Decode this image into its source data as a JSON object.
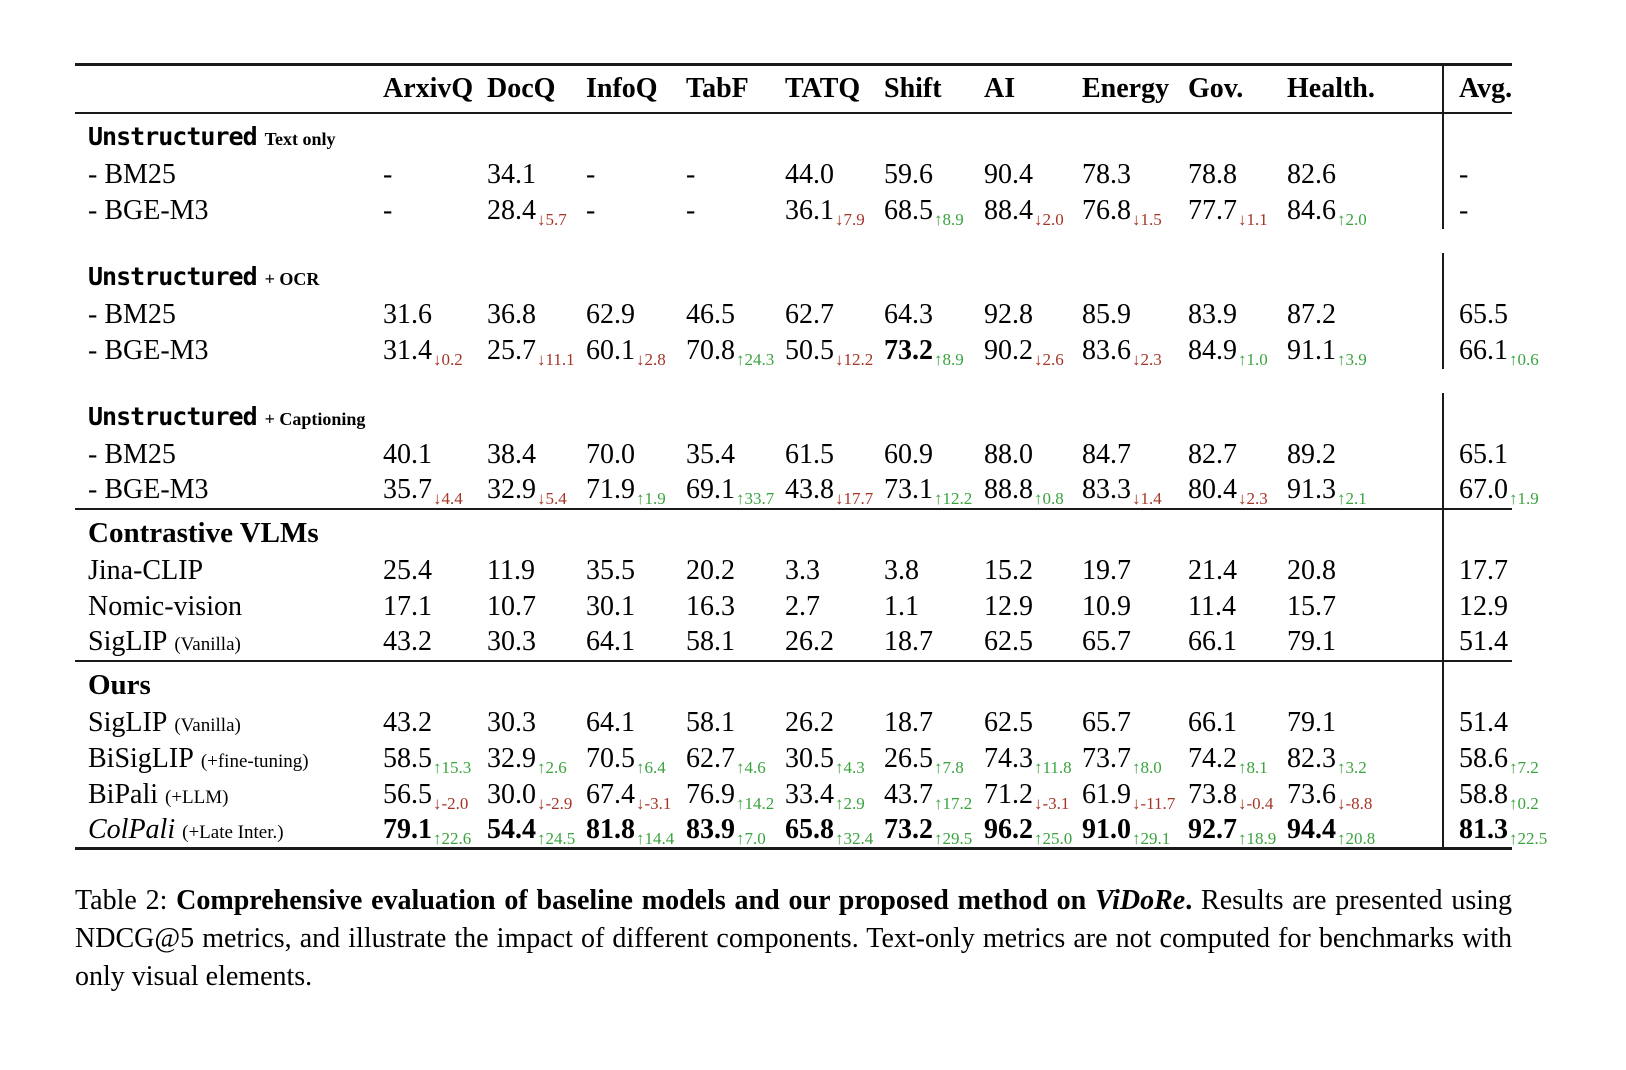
{
  "colors": {
    "increase": "#3aa33e",
    "decrease": "#a43527",
    "rule": "#1a1a1a",
    "text": "#000000"
  },
  "table": {
    "corner_label": "",
    "columns": [
      "ArxivQ",
      "DocQ",
      "InfoQ",
      "TabF",
      "TATQ",
      "Shift",
      "AI",
      "Energy",
      "Gov.",
      "Health."
    ],
    "avg_column": "Avg.",
    "sections": [
      {
        "title": "Unstructured",
        "title_font": "mono",
        "suffix": "Text only",
        "rows": [
          {
            "label": "- BM25",
            "cells": [
              "-",
              "34.1",
              "-",
              "-",
              "44.0",
              "59.6",
              "90.4",
              "78.3",
              "78.8",
              "82.6",
              "-"
            ]
          },
          {
            "label": "- BGE-M3",
            "cells": [
              "-",
              {
                "v": "28.4",
                "dir": "down",
                "d": "5.7"
              },
              "-",
              "-",
              {
                "v": "36.1",
                "dir": "down",
                "d": "7.9"
              },
              {
                "v": "68.5",
                "dir": "up",
                "d": "8.9"
              },
              {
                "v": "88.4",
                "dir": "down",
                "d": "2.0"
              },
              {
                "v": "76.8",
                "dir": "down",
                "d": "1.5"
              },
              {
                "v": "77.7",
                "dir": "down",
                "d": "1.1"
              },
              {
                "v": "84.6",
                "dir": "up",
                "d": "2.0"
              },
              "-"
            ]
          }
        ]
      },
      {
        "title": "Unstructured",
        "title_font": "mono",
        "suffix": "+ OCR",
        "gap_before": true,
        "rows": [
          {
            "label": "- BM25",
            "cells": [
              "31.6",
              "36.8",
              "62.9",
              "46.5",
              "62.7",
              "64.3",
              "92.8",
              "85.9",
              "83.9",
              "87.2",
              "65.5"
            ]
          },
          {
            "label": "- BGE-M3",
            "cells": [
              {
                "v": "31.4",
                "dir": "down",
                "d": "0.2"
              },
              {
                "v": "25.7",
                "dir": "down",
                "d": "11.1"
              },
              {
                "v": "60.1",
                "dir": "down",
                "d": "2.8"
              },
              {
                "v": "70.8",
                "dir": "up",
                "d": "24.3"
              },
              {
                "v": "50.5",
                "dir": "down",
                "d": "12.2"
              },
              {
                "v": "73.2",
                "dir": "up",
                "d": "8.9",
                "b": true
              },
              {
                "v": "90.2",
                "dir": "down",
                "d": "2.6"
              },
              {
                "v": "83.6",
                "dir": "down",
                "d": "2.3"
              },
              {
                "v": "84.9",
                "dir": "up",
                "d": "1.0"
              },
              {
                "v": "91.1",
                "dir": "up",
                "d": "3.9"
              },
              {
                "v": "66.1",
                "dir": "up",
                "d": "0.6"
              }
            ]
          }
        ]
      },
      {
        "title": "Unstructured",
        "title_font": "mono",
        "suffix": "+ Captioning",
        "gap_before": true,
        "rows": [
          {
            "label": "- BM25",
            "cells": [
              "40.1",
              "38.4",
              "70.0",
              "35.4",
              "61.5",
              "60.9",
              "88.0",
              "84.7",
              "82.7",
              "89.2",
              "65.1"
            ]
          },
          {
            "label": "- BGE-M3",
            "cells": [
              {
                "v": "35.7",
                "dir": "down",
                "d": "4.4"
              },
              {
                "v": "32.9",
                "dir": "down",
                "d": "5.4"
              },
              {
                "v": "71.9",
                "dir": "up",
                "d": "1.9"
              },
              {
                "v": "69.1",
                "dir": "up",
                "d": "33.7"
              },
              {
                "v": "43.8",
                "dir": "down",
                "d": "17.7"
              },
              {
                "v": "73.1",
                "dir": "up",
                "d": "12.2"
              },
              {
                "v": "88.8",
                "dir": "up",
                "d": "0.8"
              },
              {
                "v": "83.3",
                "dir": "down",
                "d": "1.4"
              },
              {
                "v": "80.4",
                "dir": "down",
                "d": "2.3"
              },
              {
                "v": "91.3",
                "dir": "up",
                "d": "2.1"
              },
              {
                "v": "67.0",
                "dir": "up",
                "d": "1.9"
              }
            ]
          }
        ]
      },
      {
        "title": "Contrastive VLMs",
        "title_font": "serif",
        "rule_before": true,
        "rows": [
          {
            "label": "Jina-CLIP",
            "cells": [
              "25.4",
              "11.9",
              "35.5",
              "20.2",
              "3.3",
              "3.8",
              "15.2",
              "19.7",
              "21.4",
              "20.8",
              "17.7"
            ]
          },
          {
            "label": "Nomic-vision",
            "cells": [
              "17.1",
              "10.7",
              "30.1",
              "16.3",
              "2.7",
              "1.1",
              "12.9",
              "10.9",
              "11.4",
              "15.7",
              "12.9"
            ]
          },
          {
            "label": "SigLIP",
            "label_suffix": "(Vanilla)",
            "cells": [
              "43.2",
              "30.3",
              "64.1",
              "58.1",
              "26.2",
              "18.7",
              "62.5",
              "65.7",
              "66.1",
              "79.1",
              "51.4"
            ]
          }
        ]
      },
      {
        "title": "Ours",
        "title_font": "serif",
        "rule_before": true,
        "rows": [
          {
            "label": "SigLIP",
            "label_suffix": "(Vanilla)",
            "cells": [
              "43.2",
              "30.3",
              "64.1",
              "58.1",
              "26.2",
              "18.7",
              "62.5",
              "65.7",
              "66.1",
              "79.1",
              "51.4"
            ]
          },
          {
            "label": "BiSigLIP",
            "label_suffix": "(+fine-tuning)",
            "cells": [
              {
                "v": "58.5",
                "dir": "up",
                "d": "15.3"
              },
              {
                "v": "32.9",
                "dir": "up",
                "d": "2.6"
              },
              {
                "v": "70.5",
                "dir": "up",
                "d": "6.4"
              },
              {
                "v": "62.7",
                "dir": "up",
                "d": "4.6"
              },
              {
                "v": "30.5",
                "dir": "up",
                "d": "4.3"
              },
              {
                "v": "26.5",
                "dir": "up",
                "d": "7.8"
              },
              {
                "v": "74.3",
                "dir": "up",
                "d": "11.8"
              },
              {
                "v": "73.7",
                "dir": "up",
                "d": "8.0"
              },
              {
                "v": "74.2",
                "dir": "up",
                "d": "8.1"
              },
              {
                "v": "82.3",
                "dir": "up",
                "d": "3.2"
              },
              {
                "v": "58.6",
                "dir": "up",
                "d": "7.2"
              }
            ]
          },
          {
            "label": "BiPali",
            "label_suffix": "(+LLM)",
            "cells": [
              {
                "v": "56.5",
                "dir": "down",
                "d": "-2.0"
              },
              {
                "v": "30.0",
                "dir": "down",
                "d": "-2.9"
              },
              {
                "v": "67.4",
                "dir": "down",
                "d": "-3.1"
              },
              {
                "v": "76.9",
                "dir": "up",
                "d": "14.2"
              },
              {
                "v": "33.4",
                "dir": "up",
                "d": "2.9"
              },
              {
                "v": "43.7",
                "dir": "up",
                "d": "17.2"
              },
              {
                "v": "71.2",
                "dir": "down",
                "d": "-3.1"
              },
              {
                "v": "61.9",
                "dir": "down",
                "d": "-11.7"
              },
              {
                "v": "73.8",
                "dir": "down",
                "d": "-0.4"
              },
              {
                "v": "73.6",
                "dir": "down",
                "d": "-8.8"
              },
              {
                "v": "58.8",
                "dir": "up",
                "d": "0.2"
              }
            ]
          },
          {
            "label": "ColPali",
            "label_suffix": "(+Late Inter.)",
            "italic": true,
            "bold": true,
            "cells": [
              {
                "v": "79.1",
                "dir": "up",
                "d": "22.6"
              },
              {
                "v": "54.4",
                "dir": "up",
                "d": "24.5"
              },
              {
                "v": "81.8",
                "dir": "up",
                "d": "14.4"
              },
              {
                "v": "83.9",
                "dir": "up",
                "d": "7.0"
              },
              {
                "v": "65.8",
                "dir": "up",
                "d": "32.4"
              },
              {
                "v": "73.2",
                "dir": "up",
                "d": "29.5"
              },
              {
                "v": "96.2",
                "dir": "up",
                "d": "25.0"
              },
              {
                "v": "91.0",
                "dir": "up",
                "d": "29.1"
              },
              {
                "v": "92.7",
                "dir": "up",
                "d": "18.9"
              },
              {
                "v": "94.4",
                "dir": "up",
                "d": "20.8"
              },
              {
                "v": "81.3",
                "dir": "up",
                "d": "22.5"
              }
            ]
          }
        ]
      }
    ]
  },
  "caption": {
    "prefix": "Table 2: ",
    "bold": "Comprehensive evaluation of baseline models and our proposed method on ",
    "bold_italic": "ViDoRe",
    "bold_after": ". ",
    "rest": "Results are presented using NDCG@5 metrics, and illustrate the impact of different components. Text-only metrics are not computed for benchmarks with only visual elements."
  }
}
